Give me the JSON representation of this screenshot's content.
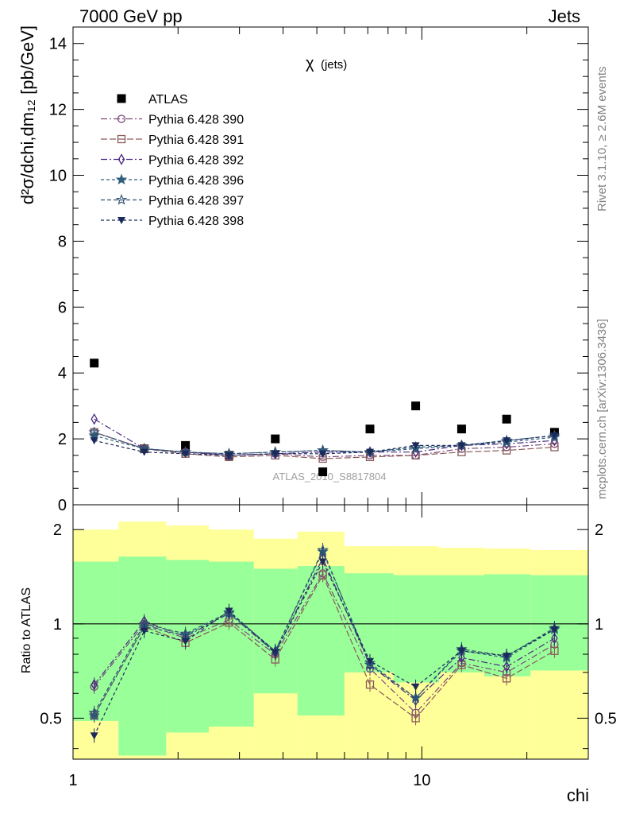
{
  "header": {
    "left": "7000 GeV pp",
    "right": "Jets"
  },
  "side_labels": {
    "rivet": "Rivet 3.1.10, ≥ 2.6M events",
    "mcplots": "mcplots.cern.ch [arXiv:1306.3436]"
  },
  "watermark": "ATLAS_2010_S8817804",
  "plot_title": {
    "symbol": "χ",
    "sub": "(jets)"
  },
  "chart_data": [
    {
      "type": "scatter",
      "panel": "main",
      "ylabel": "d²σ/dchi,dm₁₂ [pb/GeV]",
      "x_scale": "log",
      "xlim": [
        1,
        30
      ],
      "ylim": [
        0,
        14.5
      ],
      "y_ticks": [
        "0",
        "2",
        "4",
        "6",
        "8",
        "10",
        "12",
        "14"
      ],
      "x": [
        1.15,
        1.6,
        2.1,
        2.8,
        3.8,
        5.2,
        7.1,
        9.6,
        13.0,
        17.5,
        24.0
      ],
      "series": [
        {
          "name": "ATLAS",
          "color": "#000000",
          "marker": "square",
          "values": [
            4.3,
            1.7,
            1.8,
            1.5,
            2.0,
            1.0,
            2.3,
            3.0,
            2.3,
            2.6,
            2.2
          ]
        },
        {
          "name": "Pythia 6.428 390",
          "color": "#7a4a7a",
          "marker": "circle",
          "values": [
            2.2,
            1.7,
            1.6,
            1.5,
            1.55,
            1.45,
            1.5,
            1.5,
            1.7,
            1.75,
            1.85
          ]
        },
        {
          "name": "Pythia 6.428 391",
          "color": "#8a5a5a",
          "marker": "square-open",
          "values": [
            2.2,
            1.7,
            1.55,
            1.45,
            1.5,
            1.4,
            1.45,
            1.5,
            1.6,
            1.65,
            1.75
          ]
        },
        {
          "name": "Pythia 6.428 392",
          "color": "#4b2a80",
          "marker": "diamond",
          "values": [
            2.6,
            1.7,
            1.6,
            1.5,
            1.55,
            1.6,
            1.6,
            1.6,
            1.8,
            1.85,
            1.95
          ]
        },
        {
          "name": "Pythia 6.428 396",
          "color": "#2f5f7f",
          "marker": "star",
          "values": [
            2.1,
            1.7,
            1.6,
            1.55,
            1.6,
            1.65,
            1.6,
            1.7,
            1.8,
            1.9,
            2.05
          ]
        },
        {
          "name": "Pythia 6.428 397",
          "color": "#2f5070",
          "marker": "star-open",
          "values": [
            2.2,
            1.7,
            1.6,
            1.55,
            1.6,
            1.65,
            1.6,
            1.75,
            1.8,
            1.95,
            2.1
          ]
        },
        {
          "name": "Pythia 6.428 398",
          "color": "#1a2a5a",
          "marker": "triangle-down",
          "values": [
            1.95,
            1.6,
            1.55,
            1.5,
            1.55,
            1.55,
            1.6,
            1.8,
            1.8,
            1.95,
            2.1
          ]
        }
      ]
    },
    {
      "type": "line",
      "panel": "ratio",
      "ylabel": "Ratio to ATLAS",
      "x_scale": "log",
      "y_scale": "log",
      "xlim": [
        1,
        30
      ],
      "ylim": [
        0.37,
        2.4
      ],
      "xlabel": "chi",
      "x_ticks": [
        "1",
        "10"
      ],
      "y_ticks": [
        "0.5",
        "1",
        "2"
      ],
      "bins": [
        [
          1,
          1.35
        ],
        [
          1.35,
          1.85
        ],
        [
          1.85,
          2.45
        ],
        [
          2.45,
          3.3
        ],
        [
          3.3,
          4.4
        ],
        [
          4.4,
          6.0
        ],
        [
          6.0,
          8.3
        ],
        [
          8.3,
          11.2
        ],
        [
          11.2,
          15.1
        ],
        [
          15.1,
          20.5
        ],
        [
          20.5,
          30
        ]
      ],
      "band_green": [
        [
          0.49,
          1.58
        ],
        [
          0.38,
          1.64
        ],
        [
          0.45,
          1.6
        ],
        [
          0.47,
          1.58
        ],
        [
          0.6,
          1.5
        ],
        [
          0.51,
          1.53
        ],
        [
          0.7,
          1.45
        ],
        [
          0.65,
          1.43
        ],
        [
          0.7,
          1.43
        ],
        [
          0.68,
          1.44
        ],
        [
          0.71,
          1.43
        ]
      ],
      "band_yellow": [
        [
          0.37,
          2.0
        ],
        [
          0.37,
          2.12
        ],
        [
          0.37,
          2.06
        ],
        [
          0.37,
          2.0
        ],
        [
          0.37,
          1.87
        ],
        [
          0.37,
          1.97
        ],
        [
          0.37,
          1.77
        ],
        [
          0.37,
          1.77
        ],
        [
          0.37,
          1.75
        ],
        [
          0.37,
          1.74
        ],
        [
          0.37,
          1.72
        ]
      ],
      "x": [
        1.15,
        1.6,
        2.1,
        2.8,
        3.8,
        5.2,
        7.1,
        9.6,
        13.0,
        17.5,
        24.0
      ],
      "series": [
        {
          "name": "Pythia 6.428 390",
          "values": [
            0.63,
            1.0,
            0.9,
            1.03,
            0.8,
            1.45,
            0.72,
            0.52,
            0.75,
            0.7,
            0.86
          ]
        },
        {
          "name": "Pythia 6.428 391",
          "values": [
            0.51,
            0.98,
            0.87,
            1.01,
            0.77,
            1.43,
            0.64,
            0.5,
            0.74,
            0.67,
            0.82
          ]
        },
        {
          "name": "Pythia 6.428 392",
          "values": [
            0.64,
            1.02,
            0.91,
            1.08,
            0.81,
            1.62,
            0.74,
            0.57,
            0.78,
            0.73,
            0.9
          ]
        },
        {
          "name": "Pythia 6.428 396",
          "values": [
            0.51,
            0.98,
            0.92,
            1.08,
            0.82,
            1.7,
            0.75,
            0.58,
            0.82,
            0.78,
            0.96
          ]
        },
        {
          "name": "Pythia 6.428 397",
          "values": [
            0.52,
            1.0,
            0.93,
            1.09,
            0.82,
            1.72,
            0.74,
            0.58,
            0.83,
            0.79,
            0.97
          ]
        },
        {
          "name": "Pythia 6.428 398",
          "values": [
            0.44,
            0.95,
            0.88,
            1.1,
            0.81,
            1.58,
            0.76,
            0.63,
            0.82,
            0.79,
            0.96
          ]
        }
      ]
    }
  ]
}
